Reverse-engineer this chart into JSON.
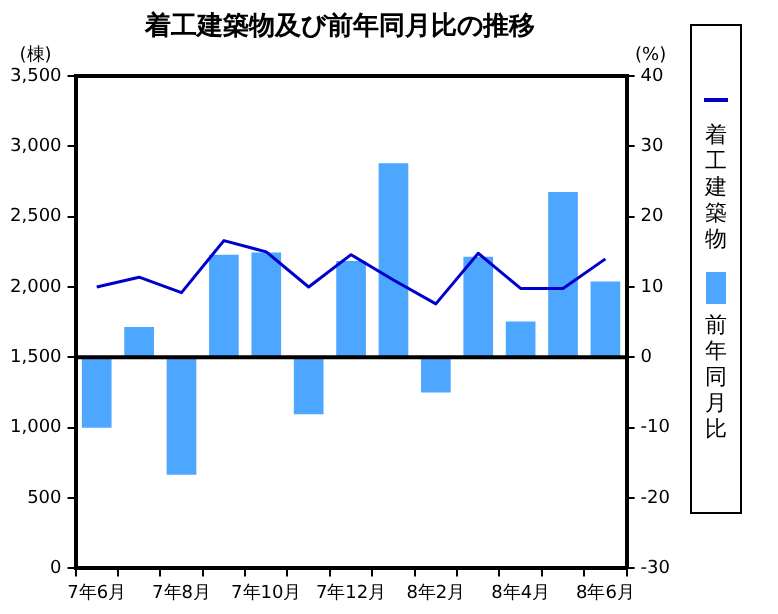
{
  "chart_data": {
    "type": "bar",
    "title": "着工建築物及び前年同月比の推移",
    "ylabel": "(棟)",
    "y2label": "(%)",
    "categories": [
      "7年6月",
      null,
      "7年8月",
      null,
      "7年10月",
      null,
      "7年12月",
      null,
      "8年2月",
      null,
      "8年4月",
      null,
      "8年6月"
    ],
    "series": [
      {
        "name": "着工建築物",
        "type": "line",
        "color": "#0000cc",
        "values": [
          2000,
          2070,
          1960,
          2330,
          2250,
          2000,
          2230,
          2050,
          1880,
          2240,
          1990,
          1990,
          2200
        ]
      },
      {
        "name": "前年同月比",
        "axis": "y2",
        "color": "#4da6ff",
        "values": [
          -10.0,
          4.3,
          -16.7,
          14.6,
          14.9,
          -8.1,
          13.7,
          27.6,
          -5.0,
          14.3,
          5.1,
          23.5,
          10.8
        ]
      }
    ],
    "ylim": [
      0,
      3500
    ],
    "yticks": [
      0,
      {
        "value": 500,
        "label": "500"
      },
      {
        "value": 1000,
        "label": "1,000"
      },
      {
        "value": 1500,
        "label": "1,500"
      },
      {
        "value": 2000,
        "label": "2,000"
      },
      {
        "value": 2500,
        "label": "2,500"
      },
      {
        "value": 3000,
        "label": "3,000"
      },
      {
        "value": 3500,
        "label": "3,500"
      }
    ],
    "y2lim": [
      -30,
      40
    ],
    "y2ticks": [
      -30,
      -20,
      -10,
      0,
      10,
      20,
      30,
      40
    ],
    "ref_lines": [
      {
        "axis": "y2",
        "value": 0,
        "color": "#000000"
      }
    ],
    "grid": false,
    "legend": "right",
    "marker": "none"
  }
}
